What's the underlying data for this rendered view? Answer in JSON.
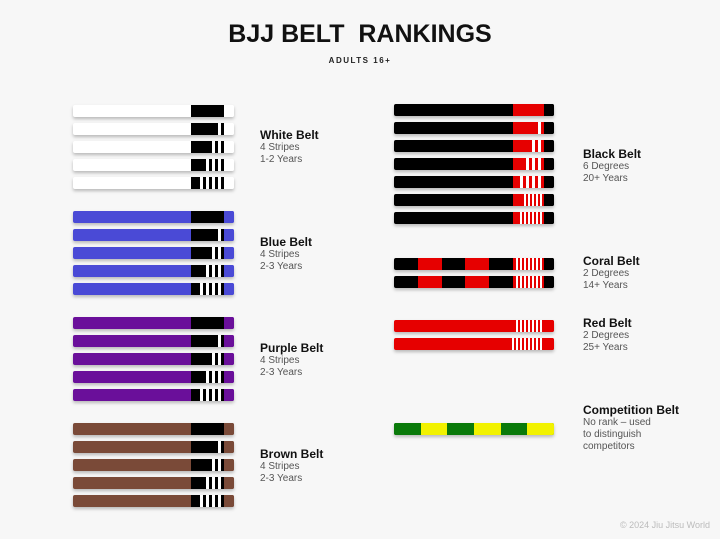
{
  "title": "BJJ BELT  RANKINGS",
  "subtitle": "ADULTS 16+",
  "copyright": "© 2024 Jiu Jitsu World",
  "belts": [
    {
      "id": "white",
      "name": "White Belt",
      "lines": [
        "4 Stripes",
        "1-2 Years"
      ],
      "base": "#ffffff",
      "tip": "#000000",
      "end": "#ffffff",
      "stripe_color": "#ffffff",
      "stripes": [
        0,
        1,
        2,
        3,
        4
      ]
    },
    {
      "id": "blue",
      "name": "Blue Belt",
      "lines": [
        "4 Stripes",
        "2-3 Years"
      ],
      "base": "#4a4ad6",
      "tip": "#000000",
      "end": "#4a4ad6",
      "stripe_color": "#ffffff",
      "stripes": [
        0,
        1,
        2,
        3,
        4
      ]
    },
    {
      "id": "purple",
      "name": "Purple Belt",
      "lines": [
        "4 Stripes",
        "2-3 Years"
      ],
      "base": "#6a0f9a",
      "tip": "#000000",
      "end": "#6a0f9a",
      "stripe_color": "#ffffff",
      "stripes": [
        0,
        1,
        2,
        3,
        4
      ]
    },
    {
      "id": "brown",
      "name": "Brown Belt",
      "lines": [
        "4 Stripes",
        "2-3 Years"
      ],
      "base": "#7a4a38",
      "tip": "#000000",
      "end": "#7a4a38",
      "stripe_color": "#ffffff",
      "stripes": [
        0,
        1,
        2,
        3,
        4
      ]
    },
    {
      "id": "black",
      "name": "Black Belt",
      "lines": [
        "6 Degrees",
        "20+ Years"
      ],
      "base": "#000000",
      "tip": "#e60000",
      "end": "#000000",
      "stripe_color": "#ffffff",
      "stripes": [
        0,
        1,
        2,
        3,
        4,
        5,
        6
      ]
    },
    {
      "id": "coral",
      "name": "Coral Belt",
      "lines": [
        "2 Degrees",
        "14+ Years"
      ],
      "base": "#000000",
      "alt": "#e60000",
      "tip": "#e60000",
      "end": "#000000",
      "stripe_color": "#ffffff",
      "stripes": [
        7,
        7
      ]
    },
    {
      "id": "red",
      "name": "Red Belt",
      "lines": [
        "2 Degrees",
        "25+ Years"
      ],
      "base": "#e60000",
      "tip": "#e60000",
      "end": "#e60000",
      "stripe_color": "#ffffff",
      "stripes": [
        7,
        8
      ]
    },
    {
      "id": "competition",
      "name": "Competition Belt",
      "lines": [
        "No rank – used",
        "to distinguish",
        "competitors"
      ],
      "base": "#0a7a0a",
      "alt": "#f2f200",
      "stripes": []
    }
  ]
}
